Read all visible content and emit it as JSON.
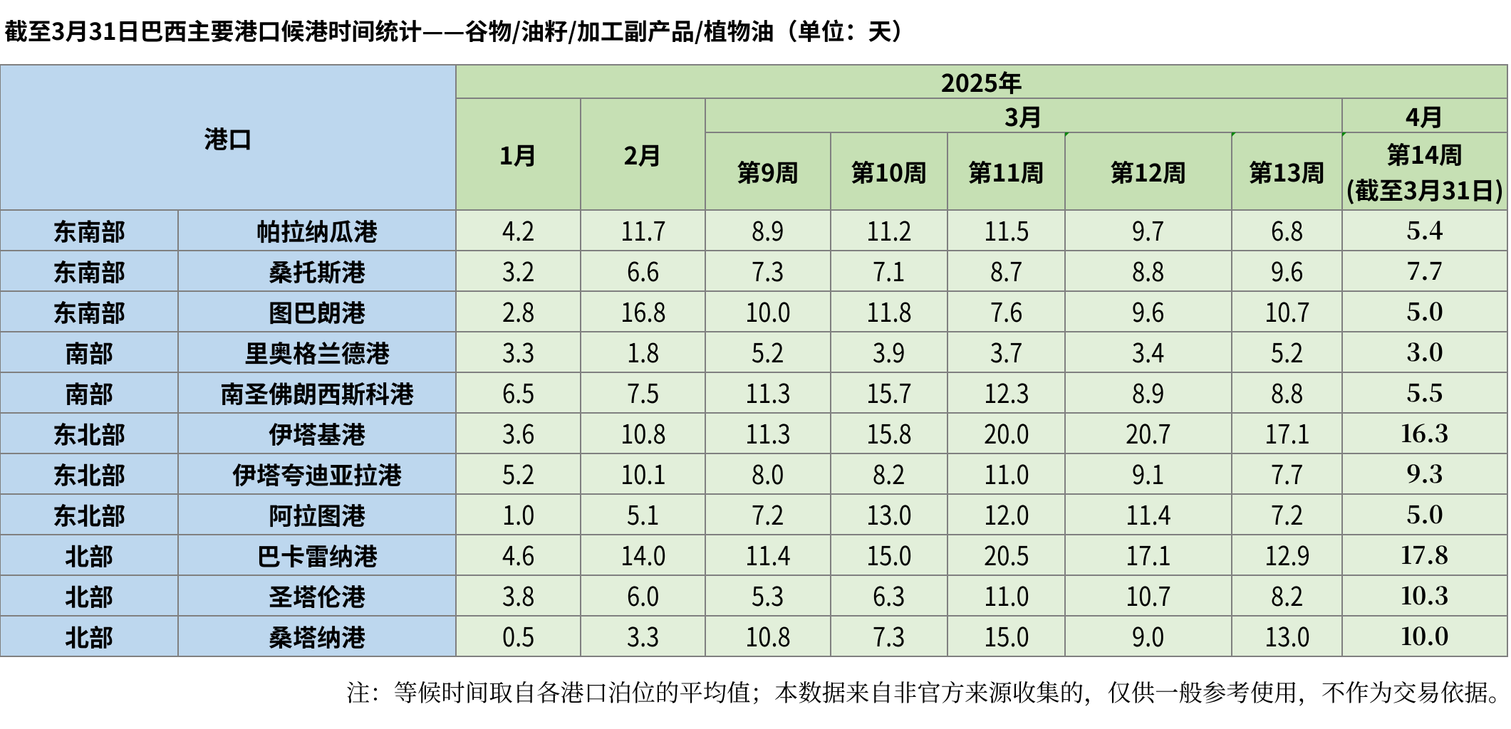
{
  "title": "截至3月31日巴西主要港口候港时间统计——谷物/油籽/加工副产品/植物油（单位：天）",
  "table": {
    "corner_header": "港口",
    "year_header": "2025年",
    "month_jan": "1月",
    "month_feb": "2月",
    "month_mar": "3月",
    "month_apr": "4月",
    "weeks": [
      "第9周",
      "第10周",
      "第11周",
      "第12周",
      "第13周"
    ],
    "week14_line1": "第14周",
    "week14_line2": "(截至3月31日)",
    "rows": [
      {
        "region": "东南部",
        "port": "帕拉纳瓜港",
        "values": [
          "4.2",
          "11.7",
          "8.9",
          "11.2",
          "11.5",
          "9.7",
          "6.8",
          "5.4"
        ]
      },
      {
        "region": "东南部",
        "port": "桑托斯港",
        "values": [
          "3.2",
          "6.6",
          "7.3",
          "7.1",
          "8.7",
          "8.8",
          "9.6",
          "7.7"
        ]
      },
      {
        "region": "东南部",
        "port": "图巴朗港",
        "values": [
          "2.8",
          "16.8",
          "10.0",
          "11.8",
          "7.6",
          "9.6",
          "10.7",
          "5.0"
        ]
      },
      {
        "region": "南部",
        "port": "里奥格兰德港",
        "values": [
          "3.3",
          "1.8",
          "5.2",
          "3.9",
          "3.7",
          "3.4",
          "5.2",
          "3.0"
        ]
      },
      {
        "region": "南部",
        "port": "南圣佛朗西斯科港",
        "values": [
          "6.5",
          "7.5",
          "11.3",
          "15.7",
          "12.3",
          "8.9",
          "8.8",
          "5.5"
        ]
      },
      {
        "region": "东北部",
        "port": "伊塔基港",
        "values": [
          "3.6",
          "10.8",
          "11.3",
          "15.8",
          "20.0",
          "20.7",
          "17.1",
          "16.3"
        ]
      },
      {
        "region": "东北部",
        "port": "伊塔夸迪亚拉港",
        "values": [
          "5.2",
          "10.1",
          "8.0",
          "8.2",
          "11.0",
          "9.1",
          "7.7",
          "9.3"
        ]
      },
      {
        "region": "东北部",
        "port": "阿拉图港",
        "values": [
          "1.0",
          "5.1",
          "7.2",
          "13.0",
          "12.0",
          "11.4",
          "7.2",
          "5.0"
        ]
      },
      {
        "region": "北部",
        "port": "巴卡雷纳港",
        "values": [
          "4.6",
          "14.0",
          "11.4",
          "15.0",
          "20.5",
          "17.1",
          "12.9",
          "17.8"
        ]
      },
      {
        "region": "北部",
        "port": "圣塔伦港",
        "values": [
          "3.8",
          "6.0",
          "5.3",
          "6.3",
          "11.0",
          "10.7",
          "8.2",
          "10.3"
        ]
      },
      {
        "region": "北部",
        "port": "桑塔纳港",
        "values": [
          "0.5",
          "3.3",
          "10.8",
          "7.3",
          "15.0",
          "9.0",
          "13.0",
          "10.0"
        ]
      }
    ]
  },
  "note": "注：等候时间取自各港口泊位的平均值；本数据来自非官方来源收集的，仅供一般参考使用，不作为交易依据。",
  "colors": {
    "header_blue": "#BDD7EE",
    "header_green": "#C6E0B4",
    "cell_green": "#E2EFDA",
    "grid_line": "#808080",
    "error_indicator_green": "#0B870B",
    "text": "#000000",
    "background": "#FFFFFF"
  }
}
